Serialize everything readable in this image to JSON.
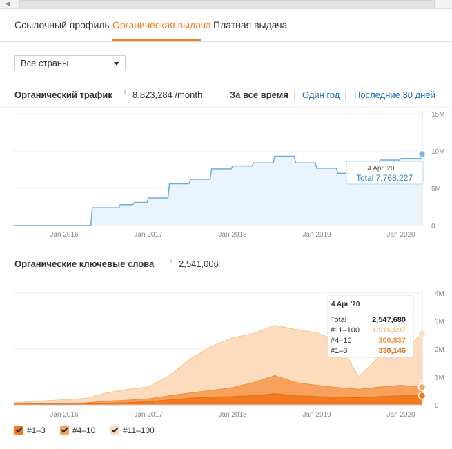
{
  "tabs": [
    {
      "label": "Ссылочный профиль"
    },
    {
      "label": "Органическая выдача"
    },
    {
      "label": "Платная выдача"
    }
  ],
  "country_select": {
    "value": "Все страны"
  },
  "traffic": {
    "title": "Органический трафик",
    "info": "i",
    "value": "8,823,284 /month",
    "ranges": [
      "За всё время",
      "Один год",
      "Последние 30 дней"
    ],
    "separator": "|"
  },
  "keywords": {
    "title": "Органические ключевые слова",
    "info": "i",
    "value": "2,541,006"
  },
  "colors": {
    "accent": "#f47a1f",
    "traffic_line": "#6aaee0",
    "traffic_fill": "#eaf4fc",
    "kw_1_3": "#f47a1f",
    "kw_4_10": "#f7a25c",
    "kw_11_100": "#fcdcbc"
  },
  "chart_data": [
    {
      "type": "area",
      "y_ticks": [
        "15M",
        "10M",
        "5M",
        "0"
      ],
      "x_ticks": [
        "Jan 2016",
        "Jan 2017",
        "Jan 2018",
        "Jan 2019",
        "Jan 2020"
      ],
      "ylim": [
        0,
        15000000
      ],
      "series": [
        {
          "x": [
            "2015-07",
            "2016-04",
            "2016-05",
            "2016-09",
            "2016-11",
            "2017-01",
            "2017-04",
            "2017-07",
            "2017-10",
            "2018-01",
            "2018-04",
            "2018-07",
            "2018-10",
            "2019-01",
            "2019-04",
            "2019-07",
            "2019-10",
            "2020-01",
            "2020-04"
          ],
          "values": [
            0,
            0,
            2400000,
            2800000,
            3100000,
            3700000,
            5600000,
            6200000,
            7600000,
            8000000,
            8400000,
            9300000,
            8400000,
            7700000,
            7000000,
            7300000,
            8800000,
            9000000,
            9600000
          ]
        }
      ],
      "tooltip": {
        "date": "4 Apr '20",
        "label": "Total 7,768,227"
      }
    },
    {
      "type": "area",
      "y_ticks": [
        "4M",
        "3M",
        "2M",
        "1M",
        "0"
      ],
      "x_ticks": [
        "Jan 2016",
        "Jan 2017",
        "Jan 2018",
        "Jan 2019",
        "Jan 2020"
      ],
      "ylim": [
        0,
        4000000
      ],
      "x": [
        "2015-07",
        "2016-04",
        "2016-07",
        "2016-10",
        "2017-01",
        "2017-04",
        "2017-07",
        "2017-10",
        "2018-01",
        "2018-04",
        "2018-07",
        "2018-10",
        "2019-01",
        "2019-04",
        "2019-07",
        "2019-10",
        "2020-01",
        "2020-04"
      ],
      "series": [
        {
          "name": "#1–3",
          "values": [
            20000,
            30000,
            60000,
            80000,
            110000,
            180000,
            240000,
            280000,
            300000,
            330000,
            400000,
            330000,
            300000,
            280000,
            260000,
            300000,
            330000,
            330000
          ]
        },
        {
          "name": "#4–10",
          "values": [
            40000,
            70000,
            130000,
            170000,
            220000,
            330000,
            430000,
            520000,
            620000,
            800000,
            1050000,
            800000,
            700000,
            620000,
            560000,
            640000,
            700000,
            630000
          ]
        },
        {
          "name": "#11–100",
          "values": [
            80000,
            230000,
            430000,
            560000,
            640000,
            1050000,
            1650000,
            2100000,
            2400000,
            2560000,
            2850000,
            2700000,
            2580000,
            2300000,
            1000000,
            1750000,
            1800000,
            2550000
          ]
        }
      ],
      "legend": [
        "#1–3",
        "#4–10",
        "#11–100"
      ],
      "tooltip": {
        "date": "4 Apr '20",
        "rows": [
          {
            "label": "Total",
            "value": "2,547,680"
          },
          {
            "label": "#11–100",
            "value": "1,916,697"
          },
          {
            "label": "#4–10",
            "value": "300,837"
          },
          {
            "label": "#1–3",
            "value": "330,146"
          }
        ]
      }
    }
  ]
}
